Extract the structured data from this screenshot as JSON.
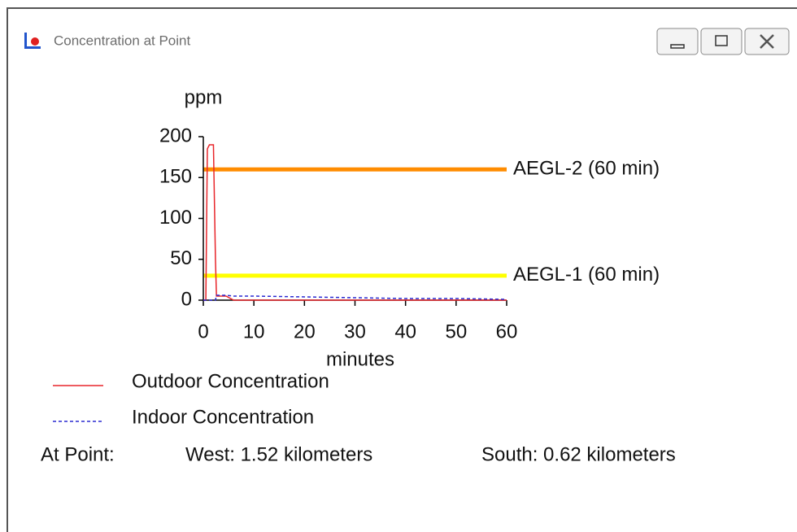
{
  "window": {
    "title": "Concentration at Point"
  },
  "chart_data": {
    "type": "line",
    "ylabel": "ppm",
    "xlabel": "minutes",
    "x": [
      0,
      0.5,
      0.8,
      1.2,
      2,
      2.4,
      2.6,
      4.5,
      6,
      10,
      20,
      30,
      40,
      50,
      60
    ],
    "series": [
      {
        "name": "Outdoor Concentration",
        "color": "#e8262b",
        "dash": false,
        "values": [
          0,
          0,
          185,
          190,
          190,
          50,
          5,
          5,
          0,
          0,
          0,
          0,
          0,
          0,
          0
        ]
      },
      {
        "name": "Indoor Concentration",
        "color": "#2a2ad0",
        "dash": true,
        "values": [
          0,
          0,
          0,
          0,
          0,
          0,
          6,
          6,
          5,
          5,
          4,
          3,
          2,
          2,
          1
        ]
      }
    ],
    "reference_lines": [
      {
        "label": "AEGL-2 (60 min)",
        "value": 160,
        "color": "#ff8c00"
      },
      {
        "label": "AEGL-1 (60 min)",
        "value": 30,
        "color": "#ffff00"
      }
    ],
    "xlim": [
      0,
      60
    ],
    "xticks": [
      0,
      10,
      20,
      30,
      40,
      50,
      60
    ],
    "ylim": [
      0,
      200
    ],
    "yticks": [
      0,
      50,
      100,
      150,
      200
    ]
  },
  "at_point": {
    "label": "At Point:",
    "west": "West: 1.52 kilometers",
    "south": "South: 0.62 kilometers"
  }
}
